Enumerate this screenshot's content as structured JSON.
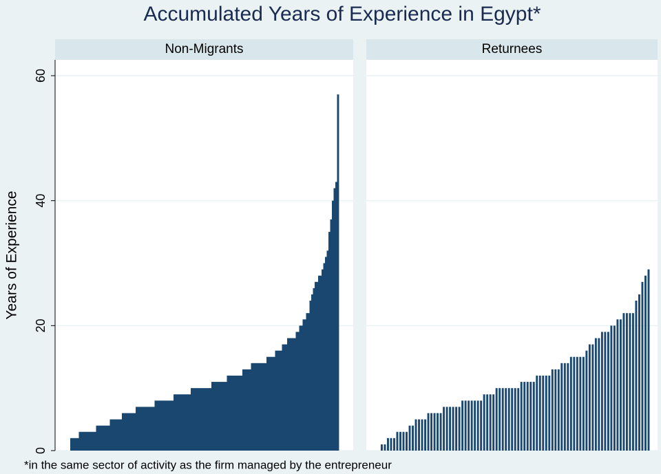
{
  "title": "Accumulated Years of Experience in Egypt*",
  "y_label": "Years of Experience",
  "note": "*in the same sector of activity as the firm managed by the entrepreneur",
  "chart_data": [
    {
      "type": "bar",
      "title": "Non-Migrants",
      "color": "#1a476f",
      "ylim": [
        0,
        60
      ],
      "yticks": [
        0,
        20,
        40,
        60
      ],
      "grid": true,
      "values": [
        2,
        2,
        2,
        2,
        2,
        3,
        3,
        3,
        3,
        3,
        3,
        3,
        3,
        3,
        3,
        4,
        4,
        4,
        4,
        4,
        4,
        4,
        4,
        5,
        5,
        5,
        5,
        5,
        5,
        5,
        6,
        6,
        6,
        6,
        6,
        6,
        6,
        6,
        7,
        7,
        7,
        7,
        7,
        7,
        7,
        7,
        7,
        7,
        7,
        8,
        8,
        8,
        8,
        8,
        8,
        8,
        8,
        8,
        8,
        8,
        9,
        9,
        9,
        9,
        9,
        9,
        9,
        9,
        9,
        9,
        10,
        10,
        10,
        10,
        10,
        10,
        10,
        10,
        10,
        10,
        10,
        10,
        11,
        11,
        11,
        11,
        11,
        11,
        11,
        11,
        11,
        12,
        12,
        12,
        12,
        12,
        12,
        12,
        12,
        12,
        13,
        13,
        13,
        13,
        13,
        14,
        14,
        14,
        14,
        14,
        14,
        14,
        14,
        14,
        15,
        15,
        15,
        15,
        15,
        16,
        16,
        16,
        16,
        17,
        17,
        17,
        18,
        18,
        18,
        18,
        18,
        19,
        19,
        20,
        20,
        21,
        21,
        22,
        22,
        24,
        25,
        26,
        27,
        27,
        28,
        28,
        29,
        30,
        31,
        32,
        35,
        37,
        40,
        42,
        43,
        57
      ]
    },
    {
      "type": "bar",
      "title": "Returnees",
      "color": "#1a476f",
      "ylim": [
        0,
        60
      ],
      "yticks": [
        0,
        20,
        40,
        60
      ],
      "grid": true,
      "values": [
        1,
        1,
        2,
        2,
        2,
        3,
        3,
        3,
        3,
        4,
        4,
        5,
        5,
        5,
        5,
        6,
        6,
        6,
        6,
        6,
        7,
        7,
        7,
        7,
        7,
        7,
        8,
        8,
        8,
        8,
        8,
        8,
        8,
        9,
        9,
        9,
        9,
        10,
        10,
        10,
        10,
        10,
        10,
        10,
        10,
        11,
        11,
        11,
        11,
        11,
        12,
        12,
        12,
        12,
        12,
        13,
        13,
        13,
        14,
        14,
        14,
        15,
        15,
        15,
        15,
        15,
        16,
        17,
        17,
        18,
        18,
        19,
        19,
        19,
        20,
        20,
        21,
        21,
        22,
        22,
        22,
        22,
        24,
        25,
        27,
        28,
        29
      ]
    }
  ]
}
